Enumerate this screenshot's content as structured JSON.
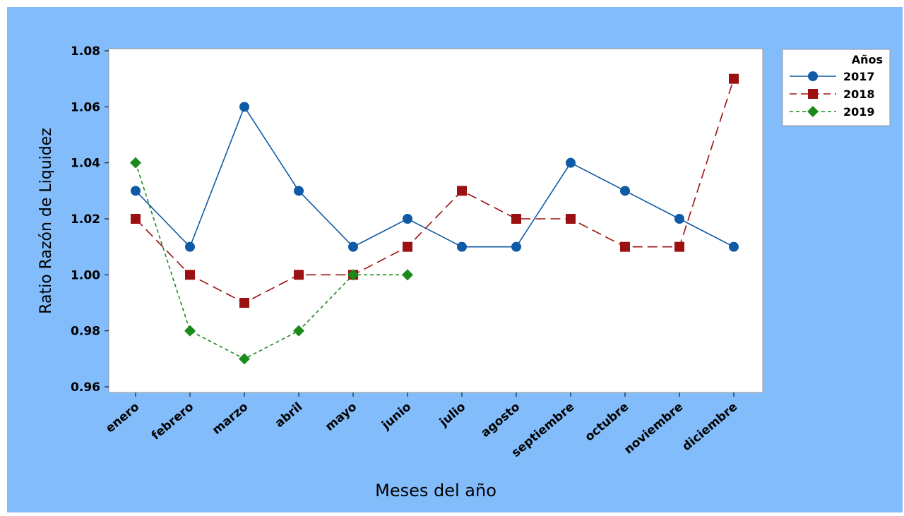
{
  "chart_data": {
    "type": "line",
    "title": "",
    "xlabel": "Meses del año",
    "ylabel": "Ratio Razón de Liquidez",
    "categories": [
      "enero",
      "febrero",
      "marzo",
      "abril",
      "mayo",
      "junio",
      "julio",
      "agosto",
      "septiembre",
      "octubre",
      "noviembre",
      "diciembre"
    ],
    "ylim": [
      0.96,
      1.08
    ],
    "yticks": [
      "0.96",
      "0.98",
      "1.00",
      "1.02",
      "1.04",
      "1.06",
      "1.08"
    ],
    "legend_title": "Años",
    "legend_position": "top-right, outside plot",
    "grid": false,
    "series": [
      {
        "name": "2017",
        "color": "#0f5aa5",
        "marker": "circle",
        "dash": "solid",
        "values": [
          1.03,
          1.01,
          1.06,
          1.03,
          1.01,
          1.02,
          1.01,
          1.01,
          1.04,
          1.03,
          1.02,
          1.01
        ]
      },
      {
        "name": "2018",
        "color": "#9b1010",
        "marker": "square",
        "dash": "long-dash",
        "values": [
          1.02,
          1.0,
          0.99,
          1.0,
          1.0,
          1.01,
          1.03,
          1.02,
          1.02,
          1.01,
          1.01,
          1.07
        ]
      },
      {
        "name": "2019",
        "color": "#1a8a1a",
        "marker": "diamond",
        "dash": "short-dash",
        "values": [
          1.04,
          0.98,
          0.97,
          0.98,
          1.0,
          1.0,
          null,
          null,
          null,
          null,
          null,
          null
        ]
      }
    ]
  }
}
